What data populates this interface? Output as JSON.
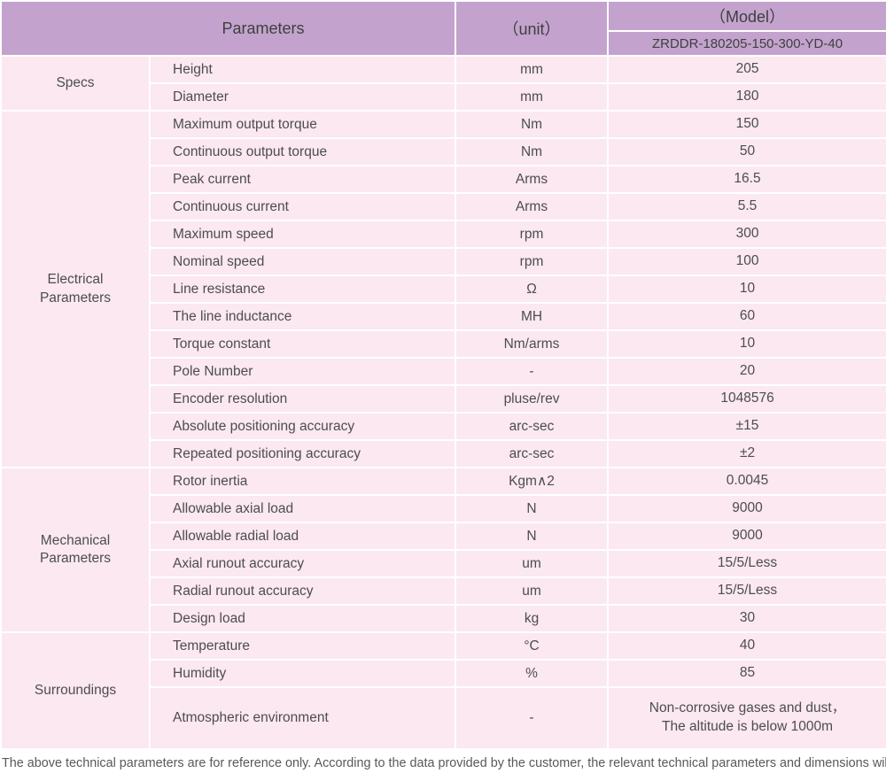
{
  "header": {
    "parameters_label": "Parameters",
    "unit_label": "（unit）",
    "model_label": "（Model）",
    "model_number": "ZRDDR-180205-150-300-YD-40"
  },
  "sections": [
    {
      "label": "Specs",
      "rows": [
        {
          "param": "Height",
          "unit": "mm",
          "value": "205"
        },
        {
          "param": "Diameter",
          "unit": "mm",
          "value": "180"
        }
      ]
    },
    {
      "label": "Electrical\nParameters",
      "rows": [
        {
          "param": "Maximum output torque",
          "unit": "Nm",
          "value": "150"
        },
        {
          "param": "Continuous output torque",
          "unit": "Nm",
          "value": "50"
        },
        {
          "param": "Peak current",
          "unit": "Arms",
          "value": "16.5"
        },
        {
          "param": "Continuous current",
          "unit": "Arms",
          "value": "5.5"
        },
        {
          "param": "Maximum speed",
          "unit": "rpm",
          "value": "300"
        },
        {
          "param": "Nominal speed",
          "unit": "rpm",
          "value": "100"
        },
        {
          "param": "Line resistance",
          "unit": "Ω",
          "value": "10"
        },
        {
          "param": "The line inductance",
          "unit": "MH",
          "value": "60"
        },
        {
          "param": "Torque constant",
          "unit": "Nm/arms",
          "value": "10"
        },
        {
          "param": "Pole Number",
          "unit": "-",
          "value": "20"
        },
        {
          "param": "Encoder resolution",
          "unit": "pluse/rev",
          "value": "1048576"
        },
        {
          "param": "Absolute positioning accuracy",
          "unit": "arc-sec",
          "value": "±15"
        },
        {
          "param": "Repeated positioning accuracy",
          "unit": "arc-sec",
          "value": "±2"
        }
      ]
    },
    {
      "label": "Mechanical\nParameters",
      "rows": [
        {
          "param": "Rotor inertia",
          "unit": "Kgm∧2",
          "value": "0.0045"
        },
        {
          "param": "Allowable axial load",
          "unit": "N",
          "value": "9000"
        },
        {
          "param": "Allowable radial load",
          "unit": "N",
          "value": "9000"
        },
        {
          "param": "Axial runout accuracy",
          "unit": "um",
          "value": "15/5/Less"
        },
        {
          "param": "Radial runout accuracy",
          "unit": "um",
          "value": "15/5/Less"
        },
        {
          "param": "Design load",
          "unit": "kg",
          "value": "30"
        }
      ]
    },
    {
      "label": "Surroundings",
      "rows": [
        {
          "param": "Temperature",
          "unit": "°C",
          "value": "40"
        },
        {
          "param": "Humidity",
          "unit": "%",
          "value": "85"
        },
        {
          "param": "Atmospheric environment",
          "unit": "-",
          "value": [
            "Non-corrosive gases and dust，",
            "The altitude is below 1000m"
          ]
        }
      ]
    }
  ],
  "footer": {
    "note": "The above technical parameters are for reference only. According to the data provided by the customer, the relevant technical parameters and dimensions will be issued."
  },
  "colors": {
    "header_bg": "#c3a3cd",
    "row_bg": "#fbe8f1",
    "border": "#ffffff",
    "text": "#4d4d4d",
    "header_text": "#3f3f3f",
    "footer_text": "#595959"
  }
}
